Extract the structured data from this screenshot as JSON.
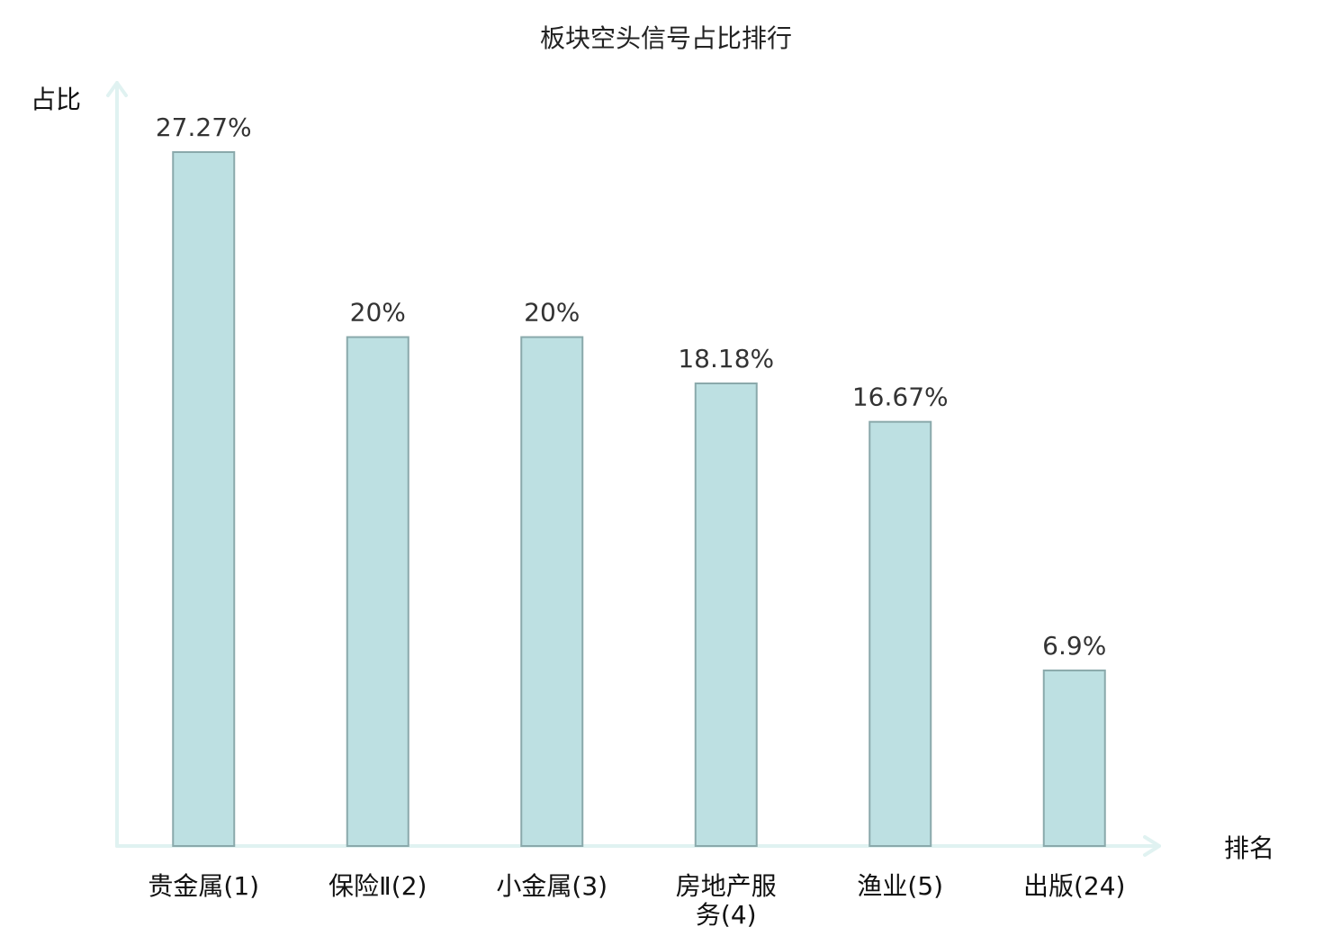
{
  "chart_data": {
    "type": "bar",
    "title": "板块空头信号占比排行",
    "xlabel": "排名",
    "ylabel": "占比",
    "categories": [
      [
        "贵金属(1)"
      ],
      [
        "保险Ⅱ(2)"
      ],
      [
        "小金属(3)"
      ],
      [
        "房地产服",
        "务(4)"
      ],
      [
        "渔业(5)"
      ],
      [
        "出版(24)"
      ]
    ],
    "values": [
      27.27,
      20,
      20,
      18.18,
      16.67,
      6.9
    ],
    "value_labels": [
      "27.27%",
      "20%",
      "20%",
      "18.18%",
      "16.67%",
      "6.9%"
    ],
    "ylim": [
      0,
      30
    ],
    "grid": false,
    "legend": "none",
    "highlight_index": 5,
    "colors": {
      "bar_fill": "#bde0e2",
      "bar_stroke": "#8aa9ab",
      "axis": "#e0f2f1",
      "label": "#111111",
      "value_label": "#333333",
      "highlight": "#e00000"
    }
  }
}
